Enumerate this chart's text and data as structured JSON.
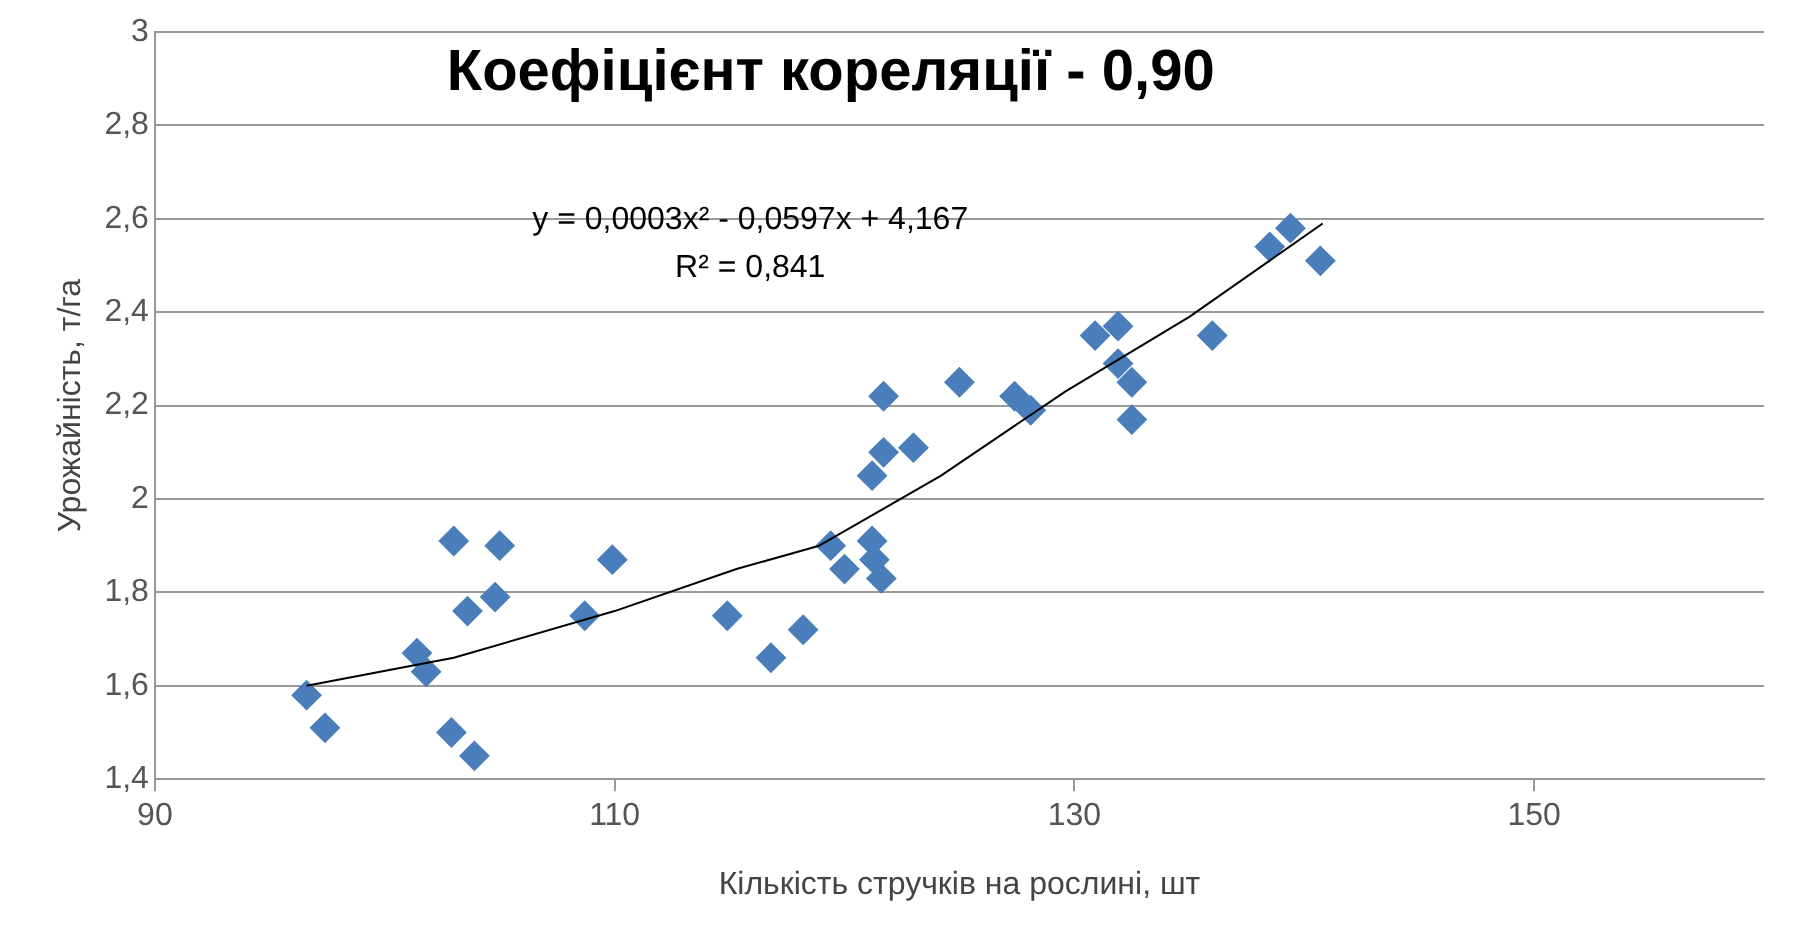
{
  "chart_data": {
    "type": "scatter",
    "title": "Коефіцієнт кореляції - 0,90",
    "xlabel": "Кількість стручків на рослині, шт",
    "ylabel": "Урожайність, т/га",
    "xlim": [
      90,
      160
    ],
    "xticks": [
      90,
      110,
      130,
      150
    ],
    "ylim": [
      1.4,
      3
    ],
    "yticks": [
      {
        "value": 1.4,
        "label": "1,4"
      },
      {
        "value": 1.6,
        "label": "1,6"
      },
      {
        "value": 1.8,
        "label": "1,8"
      },
      {
        "value": 2,
        "label": "2"
      },
      {
        "value": 2.2,
        "label": "2,2"
      },
      {
        "value": 2.4,
        "label": "2,4"
      },
      {
        "value": 2.6,
        "label": "2,6"
      },
      {
        "value": 2.8,
        "label": "2,8"
      },
      {
        "value": 3,
        "label": "3"
      }
    ],
    "grid": "y",
    "legend": false,
    "marker": "diamond",
    "annotations": [
      "y = 0,0003x² - 0,0597x + 4,167",
      "R² = 0,841"
    ],
    "series": [
      {
        "color": "#4a7ebb",
        "x": [
          96.6,
          97.4,
          101.4,
          101.8,
          103.0,
          102.9,
          103.6,
          103.9,
          104.8,
          105.0,
          108.7,
          109.9,
          114.9,
          116.8,
          118.2,
          119.4,
          120.0,
          121.2,
          121.3,
          121.6,
          121.2,
          121.7,
          121.7,
          123.0,
          125.0,
          127.4,
          128.1,
          130.9,
          131.9,
          131.9,
          132.5,
          132.5,
          136.0,
          138.5,
          139.4,
          140.7
        ],
        "values": [
          1.58,
          1.51,
          1.67,
          1.63,
          1.91,
          1.5,
          1.76,
          1.45,
          1.79,
          1.9,
          1.75,
          1.87,
          1.75,
          1.66,
          1.72,
          1.9,
          1.85,
          1.91,
          1.87,
          1.83,
          2.05,
          2.1,
          2.22,
          2.11,
          2.25,
          2.22,
          2.19,
          2.35,
          2.37,
          2.29,
          2.25,
          2.17,
          2.35,
          2.54,
          2.58,
          2.51
        ]
      },
      {
        "type": "line",
        "color": "#000000",
        "marker": "none",
        "line_style": "solid",
        "x": [
          96.6,
          103,
          110,
          115.3,
          118.9,
          124.2,
          129.6,
          135,
          140.8
        ],
        "values": [
          1.6,
          1.66,
          1.76,
          1.85,
          1.9,
          2.05,
          2.23,
          2.39,
          2.59
        ]
      }
    ]
  }
}
